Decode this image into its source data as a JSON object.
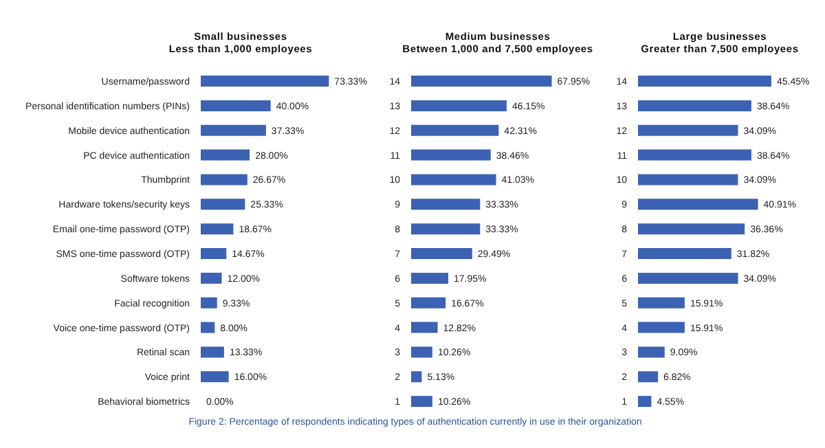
{
  "chart_data": [
    {
      "type": "bar",
      "orientation": "horizontal",
      "title": "Small businesses",
      "subtitle": "Less than 1,000 employees",
      "color": "#3c62b3",
      "categories": [
        "Username/password",
        "Personal identification numbers (PINs)",
        "Mobile device authentication",
        "PC device authentication",
        "Thumbprint",
        "Hardware tokens/security keys",
        "Email one-time password (OTP)",
        "SMS one-time password (OTP)",
        "Software tokens",
        "Facial recognition",
        "Voice one-time password (OTP)",
        "Retinal scan",
        "Voice print",
        "Behavioral biometrics"
      ],
      "values": [
        73.33,
        40.0,
        37.33,
        28.0,
        26.67,
        25.33,
        18.67,
        14.67,
        12.0,
        9.33,
        8.0,
        13.33,
        16.0,
        0.0
      ],
      "value_labels": [
        "73.33%",
        "40.00%",
        "37.33%",
        "28.00%",
        "26.67%",
        "25.33%",
        "18.67%",
        "14.67%",
        "12.00%",
        "9.33%",
        "8.00%",
        "13.33%",
        "16.00%",
        "0.00%"
      ]
    },
    {
      "type": "bar",
      "orientation": "horizontal",
      "title": "Medium businesses",
      "subtitle": "Between 1,000 and 7,500 employees",
      "color": "#3c62b3",
      "categories": [
        "14",
        "13",
        "12",
        "11",
        "10",
        "9",
        "8",
        "7",
        "6",
        "5",
        "4",
        "3",
        "2",
        "1"
      ],
      "values": [
        67.95,
        46.15,
        42.31,
        38.46,
        41.03,
        33.33,
        33.33,
        29.49,
        17.95,
        16.67,
        12.82,
        10.26,
        5.13,
        10.26
      ],
      "value_labels": [
        "67.95%",
        "46.15%",
        "42.31%",
        "38.46%",
        "41.03%",
        "33.33%",
        "33.33%",
        "29.49%",
        "17.95%",
        "16.67%",
        "12.82%",
        "10.26%",
        "5.13%",
        "10.26%"
      ],
      "annotations": [
        "Figure 2: Percentage of respondents indicating types of authentication currently in use in their organization"
      ]
    },
    {
      "type": "bar",
      "orientation": "horizontal",
      "title": "Large businesses",
      "subtitle": "Greater than 7,500 employees",
      "color": "#3c62b3",
      "categories": [
        "14",
        "13",
        "12",
        "11",
        "10",
        "9",
        "8",
        "7",
        "6",
        "5",
        "4",
        "3",
        "2",
        "1"
      ],
      "values": [
        45.45,
        38.64,
        34.09,
        38.64,
        34.09,
        40.91,
        36.36,
        31.82,
        34.09,
        15.91,
        15.91,
        9.09,
        6.82,
        4.55
      ],
      "value_labels": [
        "45.45%",
        "38.64%",
        "34.09%",
        "38.64%",
        "34.09%",
        "40.91%",
        "36.36%",
        "31.82%",
        "34.09%",
        "15.91%",
        "15.91%",
        "9.09%",
        "6.82%",
        "4.55%"
      ]
    }
  ]
}
